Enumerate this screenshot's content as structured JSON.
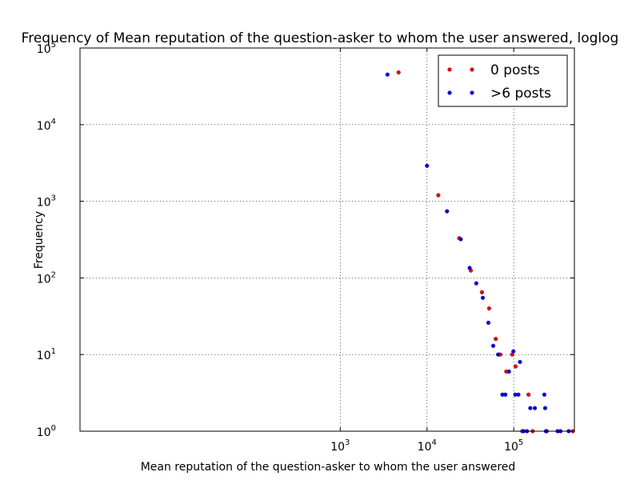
{
  "chart_data": {
    "type": "scatter",
    "title": "Frequency of Mean reputation of the question-asker to whom the user answered, loglog",
    "xlabel": "Mean reputation of the question-asker to whom the user answered",
    "ylabel": "Frequency",
    "xscale": "log",
    "yscale": "log",
    "xlim": [
      1,
      500000
    ],
    "ylim": [
      1,
      100000
    ],
    "grid": true,
    "legend_position": "top-right",
    "x_ticks": [
      {
        "value": 1000,
        "base": "10",
        "exp": "3"
      },
      {
        "value": 10000,
        "base": "10",
        "exp": "4"
      },
      {
        "value": 100000,
        "base": "10",
        "exp": "5"
      }
    ],
    "y_ticks": [
      {
        "value": 1,
        "base": "10",
        "exp": "0"
      },
      {
        "value": 10,
        "base": "10",
        "exp": "1"
      },
      {
        "value": 100,
        "base": "10",
        "exp": "2"
      },
      {
        "value": 1000,
        "base": "10",
        "exp": "3"
      },
      {
        "value": 10000,
        "base": "10",
        "exp": "4"
      },
      {
        "value": 100000,
        "base": "10",
        "exp": "5"
      }
    ],
    "series": [
      {
        "name": "0 posts",
        "color": "#ff0000",
        "points": [
          {
            "x": 4700,
            "y": 48000
          },
          {
            "x": 13500,
            "y": 1200
          },
          {
            "x": 23500,
            "y": 330
          },
          {
            "x": 32000,
            "y": 125
          },
          {
            "x": 43000,
            "y": 65
          },
          {
            "x": 52000,
            "y": 40
          },
          {
            "x": 62000,
            "y": 16
          },
          {
            "x": 70000,
            "y": 10
          },
          {
            "x": 82000,
            "y": 6
          },
          {
            "x": 96000,
            "y": 10
          },
          {
            "x": 105000,
            "y": 7
          },
          {
            "x": 125000,
            "y": 1
          },
          {
            "x": 148000,
            "y": 3
          },
          {
            "x": 165000,
            "y": 1
          },
          {
            "x": 240000,
            "y": 1
          },
          {
            "x": 480000,
            "y": 1
          }
        ]
      },
      {
        "name": ">6 posts",
        "color": "#0000ff",
        "points": [
          {
            "x": 3500,
            "y": 45000
          },
          {
            "x": 10000,
            "y": 2900
          },
          {
            "x": 17000,
            "y": 740
          },
          {
            "x": 24500,
            "y": 320
          },
          {
            "x": 31000,
            "y": 135
          },
          {
            "x": 37000,
            "y": 85
          },
          {
            "x": 44000,
            "y": 55
          },
          {
            "x": 51000,
            "y": 26
          },
          {
            "x": 58000,
            "y": 13
          },
          {
            "x": 66000,
            "y": 10
          },
          {
            "x": 74000,
            "y": 3
          },
          {
            "x": 80000,
            "y": 3
          },
          {
            "x": 88000,
            "y": 6
          },
          {
            "x": 99000,
            "y": 11
          },
          {
            "x": 104000,
            "y": 3
          },
          {
            "x": 113000,
            "y": 3
          },
          {
            "x": 118000,
            "y": 8
          },
          {
            "x": 130000,
            "y": 1
          },
          {
            "x": 142000,
            "y": 1
          },
          {
            "x": 155000,
            "y": 2
          },
          {
            "x": 175000,
            "y": 2
          },
          {
            "x": 225000,
            "y": 3
          },
          {
            "x": 230000,
            "y": 2
          },
          {
            "x": 235000,
            "y": 1
          },
          {
            "x": 320000,
            "y": 1
          },
          {
            "x": 345000,
            "y": 1
          },
          {
            "x": 430000,
            "y": 1
          }
        ]
      }
    ]
  }
}
